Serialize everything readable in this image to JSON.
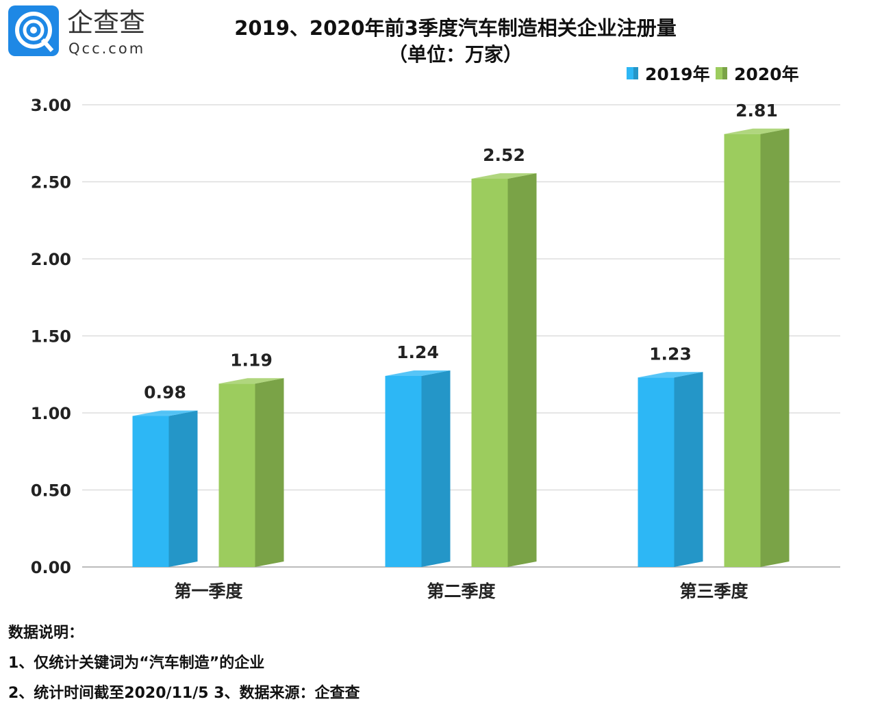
{
  "logo": {
    "text_cn": "企查查",
    "text_en": "Qcc.com",
    "color": "#1e88e5"
  },
  "chart_data": {
    "type": "bar",
    "title": "2019、2020年前3季度汽车制造相关企业注册量",
    "subtitle": "（单位：万家）",
    "categories": [
      "第一季度",
      "第二季度",
      "第三季度"
    ],
    "series": [
      {
        "name": "2019年",
        "values": [
          0.98,
          1.24,
          1.23
        ],
        "color": "#2db7f5",
        "side_color": "#2496c8"
      },
      {
        "name": "2020年",
        "values": [
          1.19,
          2.52,
          2.81
        ],
        "color": "#9ccc5e",
        "side_color": "#7aa347"
      }
    ],
    "yticks": [
      "0.00",
      "0.50",
      "1.00",
      "1.50",
      "2.00",
      "2.50",
      "3.00"
    ],
    "ylim": [
      0,
      3
    ],
    "grid": true,
    "legend_position": "top-right",
    "style": "3d-bar"
  },
  "notes": {
    "heading": "数据说明：",
    "line1": "1、仅统计关键词为“汽车制造”的企业",
    "line2": "2、统计时间截至2020/11/5  3、数据来源：企查查"
  }
}
